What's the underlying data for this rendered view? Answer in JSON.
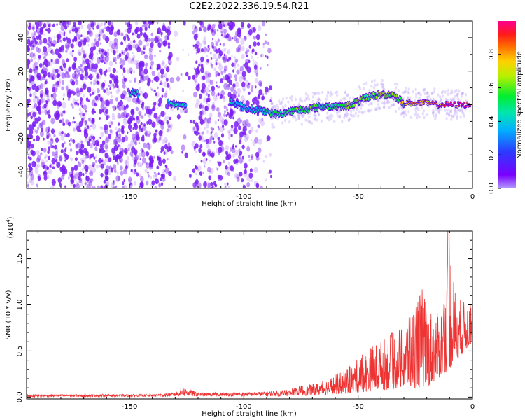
{
  "title": "C2E2.2022.336.19.54.R21",
  "colors": {
    "snr_line": "#ee3333",
    "spectrogram_purple": "#7a1cf5",
    "colormap": [
      "#7a00ff",
      "#3a3cff",
      "#00b2ff",
      "#00e5b0",
      "#00ee30",
      "#8cf000",
      "#ffd000",
      "#ff6a00",
      "#ff1a1a",
      "#ff0090"
    ]
  },
  "chart_data": [
    {
      "type": "heatmap",
      "name": "spectrogram",
      "xlabel": "Height of straight line (km)",
      "ylabel": "Frequency (Hz)",
      "xlim": [
        -195,
        0
      ],
      "ylim": [
        -50,
        50
      ],
      "xticks": [
        -150,
        -100,
        -50,
        0
      ],
      "yticks": [
        -40,
        -20,
        0,
        20,
        40
      ],
      "colorbar": {
        "label": "Normalized spectral amplitude",
        "range": [
          0,
          1
        ],
        "ticks": [
          "0.0",
          "0.2",
          "0.4",
          "0.6",
          "0.8"
        ]
      },
      "ridge": {
        "x": [
          -148,
          -130,
          -127,
          -120,
          -105,
          -100,
          -95,
          -90,
          -85,
          -80,
          -75,
          -70,
          -65,
          -60,
          -55,
          -50,
          -45,
          -40,
          -35,
          -30,
          -25,
          -20,
          -15,
          -10,
          -5,
          -1
        ],
        "frequency": [
          7,
          0,
          -1,
          0,
          2,
          -2,
          -3,
          -4,
          -6,
          -4,
          -3,
          -2,
          -1,
          -1,
          -1,
          2,
          5,
          6,
          6,
          1,
          1,
          1,
          0,
          0,
          0,
          0
        ],
        "amplitude": [
          0.3,
          0.35,
          0.3,
          0.2,
          0.3,
          0.25,
          0.3,
          0.35,
          0.4,
          0.45,
          0.45,
          0.45,
          0.4,
          0.45,
          0.5,
          0.5,
          0.5,
          0.55,
          0.5,
          0.65,
          0.7,
          0.75,
          0.8,
          0.9,
          0.95,
          0.9
        ]
      },
      "noise_region_km": [
        -195,
        -88
      ],
      "gap_km": [
        -132,
        -122
      ]
    },
    {
      "type": "line",
      "name": "snr",
      "xlabel": "Height of straight line (km)",
      "ylabel": "SNR (10 * v/v)",
      "multiplier": "(x10",
      "multiplier_exp": "4",
      "xlim": [
        -195,
        0
      ],
      "ylim": [
        -0.02,
        1.8
      ],
      "xticks": [
        -150,
        -100,
        -50,
        0
      ],
      "yticks": [
        "0.0",
        "0.5",
        "1.0",
        "1.5"
      ],
      "envelope": {
        "x": [
          -195,
          -140,
          -130,
          -127,
          -120,
          -100,
          -90,
          -80,
          -75,
          -70,
          -65,
          -60,
          -55,
          -50,
          -45,
          -40,
          -35,
          -30,
          -25,
          -22,
          -20,
          -15,
          -12,
          -10,
          -8,
          -5,
          0
        ],
        "y": [
          0.03,
          0.03,
          0.05,
          0.11,
          0.05,
          0.05,
          0.06,
          0.08,
          0.13,
          0.14,
          0.18,
          0.24,
          0.32,
          0.42,
          0.55,
          0.62,
          0.7,
          0.8,
          1.05,
          1.2,
          1.0,
          0.9,
          1.1,
          1.78,
          1.2,
          1.05,
          1.0
        ]
      },
      "baseline": {
        "x": [
          -195,
          -100,
          -80,
          -70,
          -60,
          -50,
          -40,
          -30,
          -20,
          -10,
          0
        ],
        "y": [
          0.0,
          0.01,
          0.01,
          0.02,
          0.03,
          0.05,
          0.07,
          0.1,
          0.1,
          0.3,
          0.6
        ]
      }
    }
  ]
}
